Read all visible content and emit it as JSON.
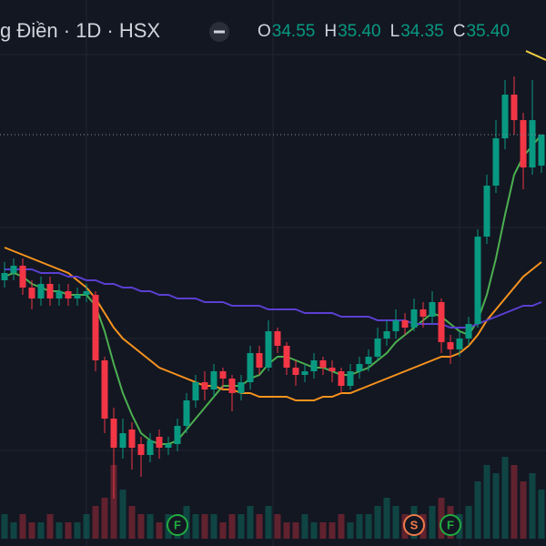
{
  "chart_data": {
    "type": "candlestick",
    "title": "g Điền · 1D · HSX",
    "ohlc_legend": [
      {
        "key": "O",
        "value": "34.55"
      },
      {
        "key": "H",
        "value": "35.40"
      },
      {
        "key": "L",
        "value": "34.35"
      },
      {
        "key": "C",
        "value": "35.40"
      }
    ],
    "ylim": [
      24.1,
      39.1
    ],
    "up_color": "#089981",
    "down_color": "#f23645",
    "open": [
      31.4,
      31.6,
      31.8,
      31.2,
      30.9,
      31.3,
      30.9,
      31.1,
      30.9,
      31.0,
      31.0,
      29.2,
      27.6,
      26.8,
      27.3,
      26.9,
      26.6,
      27.1,
      26.8,
      26.9,
      27.4,
      28.1,
      28.6,
      28.4,
      28.9,
      28.7,
      28.3,
      28.6,
      29.4,
      29.0,
      30.0,
      29.6,
      29.0,
      28.8,
      28.9,
      29.2,
      29.0,
      28.9,
      28.5,
      28.9,
      29.1,
      29.3,
      29.8,
      30.0,
      30.3,
      30.1,
      30.6,
      30.4,
      30.8,
      29.7,
      29.5,
      29.8,
      30.2,
      32.6,
      34.0,
      35.3,
      36.5,
      35.8,
      34.5,
      34.55
    ],
    "high": [
      31.9,
      32.0,
      32.0,
      31.4,
      31.5,
      31.5,
      31.3,
      31.3,
      31.2,
      31.3,
      31.1,
      29.3,
      27.9,
      27.6,
      27.5,
      27.1,
      27.2,
      27.3,
      27.1,
      27.6,
      28.3,
      28.8,
      28.9,
      29.1,
      29.0,
      28.8,
      28.8,
      29.6,
      29.6,
      30.3,
      30.1,
      29.7,
      29.2,
      29.1,
      29.4,
      29.3,
      29.2,
      29.0,
      29.1,
      29.3,
      29.5,
      30.1,
      30.3,
      30.6,
      30.5,
      30.9,
      30.8,
      31.1,
      30.9,
      29.9,
      30.0,
      30.4,
      32.8,
      34.3,
      35.8,
      36.9,
      37.0,
      36.0,
      36.9,
      35.4
    ],
    "low": [
      31.2,
      31.4,
      31.0,
      30.6,
      30.7,
      30.7,
      30.7,
      30.7,
      30.7,
      30.8,
      28.9,
      27.2,
      25.4,
      26.5,
      26.2,
      26.0,
      26.4,
      26.5,
      26.6,
      26.7,
      27.2,
      27.9,
      28.1,
      28.2,
      28.4,
      27.8,
      28.1,
      28.4,
      28.8,
      28.9,
      29.4,
      28.8,
      28.5,
      28.6,
      28.7,
      28.8,
      28.6,
      28.3,
      28.4,
      28.7,
      28.9,
      29.2,
      29.6,
      29.8,
      29.9,
      30.0,
      30.1,
      30.2,
      29.4,
      29.1,
      29.3,
      29.6,
      30.1,
      32.4,
      33.8,
      35.0,
      35.4,
      33.9,
      34.3,
      34.35
    ],
    "close": [
      31.6,
      31.8,
      31.2,
      30.9,
      31.3,
      30.9,
      31.1,
      30.9,
      31.0,
      31.1,
      29.2,
      27.6,
      26.8,
      27.2,
      26.8,
      26.6,
      27.0,
      26.8,
      26.9,
      27.4,
      28.1,
      28.6,
      28.4,
      28.9,
      28.7,
      28.3,
      28.6,
      29.4,
      29.0,
      30.0,
      29.6,
      29.0,
      28.8,
      28.9,
      29.2,
      29.0,
      28.9,
      28.5,
      28.9,
      29.1,
      29.3,
      29.8,
      30.0,
      30.3,
      30.1,
      30.6,
      30.4,
      30.8,
      29.7,
      29.5,
      29.8,
      30.2,
      32.6,
      34.0,
      35.3,
      36.5,
      35.8,
      34.5,
      35.8,
      35.4
    ],
    "volume": [
      3,
      2,
      3,
      2,
      2,
      3,
      2,
      2,
      2,
      3,
      4,
      5,
      9,
      6,
      4,
      3,
      3,
      2,
      3,
      3,
      4,
      3,
      3,
      3,
      2,
      3,
      3,
      4,
      3,
      4,
      3,
      2,
      2,
      3,
      2,
      2,
      2,
      3,
      2,
      3,
      3,
      4,
      5,
      4,
      3,
      4,
      3,
      4,
      5,
      4,
      3,
      4,
      7,
      9,
      8,
      10,
      9,
      7,
      8,
      6
    ],
    "volume_ylim": [
      0,
      10
    ],
    "moving_averages": [
      {
        "color": "#4caf50",
        "values": [
          31.5,
          31.6,
          31.5,
          31.3,
          31.2,
          31.1,
          31.1,
          31.0,
          31.0,
          31.0,
          30.7,
          30.0,
          29.1,
          28.3,
          27.7,
          27.2,
          27.0,
          26.9,
          26.9,
          27.0,
          27.3,
          27.6,
          27.9,
          28.2,
          28.5,
          28.5,
          28.5,
          28.7,
          28.8,
          29.1,
          29.3,
          29.3,
          29.2,
          29.1,
          29.0,
          29.0,
          28.9,
          28.8,
          28.8,
          28.9,
          29.0,
          29.2,
          29.4,
          29.7,
          29.9,
          30.1,
          30.3,
          30.5,
          30.4,
          30.2,
          30.0,
          29.9,
          30.3,
          31.0,
          32.0,
          33.2,
          34.3,
          34.8,
          35.1,
          35.4
        ]
      },
      {
        "color": "#f7931e",
        "values": [
          32.3,
          32.2,
          32.1,
          32.0,
          31.9,
          31.8,
          31.7,
          31.6,
          31.4,
          31.2,
          30.9,
          30.5,
          30.1,
          29.8,
          29.6,
          29.4,
          29.2,
          29.0,
          28.9,
          28.8,
          28.7,
          28.6,
          28.5,
          28.5,
          28.4,
          28.4,
          28.3,
          28.3,
          28.2,
          28.2,
          28.2,
          28.2,
          28.1,
          28.1,
          28.1,
          28.2,
          28.2,
          28.3,
          28.3,
          28.4,
          28.5,
          28.6,
          28.7,
          28.8,
          28.9,
          29.0,
          29.1,
          29.2,
          29.3,
          29.3,
          29.4,
          29.6,
          29.9,
          30.3,
          30.6,
          30.9,
          31.2,
          31.5,
          31.7,
          31.9
        ]
      },
      {
        "color": "#5b3fd1",
        "values": [
          31.7,
          31.7,
          31.7,
          31.7,
          31.6,
          31.6,
          31.6,
          31.5,
          31.5,
          31.4,
          31.4,
          31.3,
          31.3,
          31.2,
          31.2,
          31.1,
          31.1,
          31.0,
          31.0,
          30.9,
          30.9,
          30.9,
          30.8,
          30.8,
          30.8,
          30.7,
          30.7,
          30.7,
          30.7,
          30.6,
          30.6,
          30.6,
          30.6,
          30.5,
          30.5,
          30.5,
          30.5,
          30.4,
          30.4,
          30.4,
          30.4,
          30.3,
          30.3,
          30.3,
          30.3,
          30.2,
          30.2,
          30.2,
          30.2,
          30.1,
          30.1,
          30.1,
          30.2,
          30.3,
          30.4,
          30.5,
          30.6,
          30.7,
          30.7,
          30.8
        ]
      }
    ],
    "events": [
      {
        "label": "F",
        "index": 19,
        "color": "#22ab3f"
      },
      {
        "label": "S",
        "index": 45,
        "color": "#f07a4a"
      },
      {
        "label": "F",
        "index": 49,
        "color": "#22ab3f"
      }
    ]
  }
}
